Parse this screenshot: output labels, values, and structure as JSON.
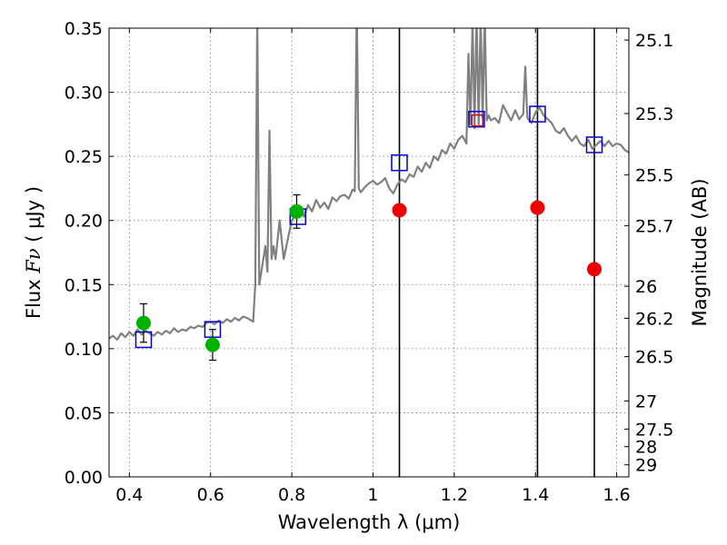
{
  "chart_data": {
    "type": "scatter",
    "xlabel": "Wavelength  λ (μm)",
    "ylabel_prefix": "Flux ",
    "ylabel_symbol": "Fν",
    "ylabel_unit": " ( μJy )",
    "ylabel_right": "Magnitude (AB)",
    "xlim": [
      0.35,
      1.63
    ],
    "ylim": [
      0.0,
      0.35
    ],
    "grid": true,
    "x_ticks": [
      0.4,
      0.6,
      0.8,
      1.0,
      1.2,
      1.4,
      1.6
    ],
    "x_tick_labels": [
      "0.4",
      "0.6",
      "0.8",
      "1",
      "1.2",
      "1.4",
      "1.6"
    ],
    "y_ticks": [
      0.0,
      0.05,
      0.1,
      0.15,
      0.2,
      0.25,
      0.3,
      0.35
    ],
    "y_tick_labels": [
      "0.00",
      "0.05",
      "0.10",
      "0.15",
      "0.20",
      "0.25",
      "0.30",
      "0.35"
    ],
    "mag_ticks": [
      {
        "label": "25.1",
        "flux": 0.3407
      },
      {
        "label": "25.3",
        "flux": 0.2834
      },
      {
        "label": "25.5",
        "flux": 0.2357
      },
      {
        "label": "25.7",
        "flux": 0.196
      },
      {
        "label": "26",
        "flux": 0.1487
      },
      {
        "label": "26.2",
        "flux": 0.1237
      },
      {
        "label": "26.5",
        "flux": 0.0938
      },
      {
        "label": "27",
        "flux": 0.0592
      },
      {
        "label": "27.5",
        "flux": 0.0373
      },
      {
        "label": "28",
        "flux": 0.0236
      },
      {
        "label": "29",
        "flux": 0.0094
      }
    ],
    "vertical_lines": [
      1.065,
      1.405,
      1.545
    ],
    "series": [
      {
        "kind": "spectrum",
        "color": "#808080",
        "x": [
          0.35,
          0.36,
          0.37,
          0.38,
          0.39,
          0.4,
          0.41,
          0.42,
          0.43,
          0.44,
          0.45,
          0.46,
          0.47,
          0.48,
          0.49,
          0.5,
          0.51,
          0.52,
          0.53,
          0.54,
          0.55,
          0.56,
          0.57,
          0.58,
          0.59,
          0.6,
          0.61,
          0.62,
          0.63,
          0.64,
          0.65,
          0.66,
          0.67,
          0.68,
          0.69,
          0.7,
          0.705,
          0.71,
          0.715,
          0.72,
          0.725,
          0.73,
          0.735,
          0.74,
          0.745,
          0.75,
          0.755,
          0.76,
          0.77,
          0.78,
          0.79,
          0.8,
          0.81,
          0.82,
          0.83,
          0.84,
          0.85,
          0.86,
          0.87,
          0.88,
          0.89,
          0.9,
          0.91,
          0.92,
          0.93,
          0.94,
          0.95,
          0.955,
          0.96,
          0.965,
          0.97,
          0.98,
          0.99,
          1.0,
          1.01,
          1.02,
          1.03,
          1.04,
          1.05,
          1.06,
          1.07,
          1.08,
          1.09,
          1.1,
          1.11,
          1.12,
          1.13,
          1.14,
          1.15,
          1.16,
          1.17,
          1.18,
          1.19,
          1.2,
          1.21,
          1.22,
          1.23,
          1.235,
          1.24,
          1.245,
          1.25,
          1.255,
          1.26,
          1.265,
          1.27,
          1.275,
          1.28,
          1.285,
          1.29,
          1.3,
          1.31,
          1.32,
          1.33,
          1.34,
          1.35,
          1.36,
          1.37,
          1.375,
          1.38,
          1.39,
          1.4,
          1.41,
          1.42,
          1.43,
          1.44,
          1.45,
          1.46,
          1.47,
          1.48,
          1.49,
          1.5,
          1.51,
          1.52,
          1.53,
          1.54,
          1.55,
          1.56,
          1.57,
          1.58,
          1.59,
          1.6,
          1.61,
          1.62,
          1.63
        ],
        "y": [
          0.108,
          0.11,
          0.107,
          0.112,
          0.109,
          0.113,
          0.11,
          0.115,
          0.111,
          0.114,
          0.112,
          0.11,
          0.113,
          0.111,
          0.114,
          0.112,
          0.116,
          0.113,
          0.115,
          0.114,
          0.117,
          0.116,
          0.118,
          0.117,
          0.12,
          0.121,
          0.119,
          0.122,
          0.12,
          0.123,
          0.121,
          0.124,
          0.122,
          0.125,
          0.124,
          0.122,
          0.121,
          0.15,
          0.36,
          0.15,
          0.16,
          0.17,
          0.18,
          0.16,
          0.27,
          0.17,
          0.18,
          0.17,
          0.2,
          0.17,
          0.185,
          0.2,
          0.205,
          0.21,
          0.203,
          0.212,
          0.207,
          0.216,
          0.21,
          0.214,
          0.209,
          0.218,
          0.215,
          0.219,
          0.22,
          0.217,
          0.224,
          0.223,
          0.37,
          0.225,
          0.222,
          0.226,
          0.229,
          0.231,
          0.228,
          0.23,
          0.233,
          0.225,
          0.221,
          0.228,
          0.232,
          0.23,
          0.236,
          0.234,
          0.242,
          0.238,
          0.245,
          0.241,
          0.25,
          0.247,
          0.255,
          0.252,
          0.26,
          0.256,
          0.263,
          0.266,
          0.26,
          0.33,
          0.275,
          0.355,
          0.272,
          0.36,
          0.275,
          0.36,
          0.28,
          0.36,
          0.278,
          0.282,
          0.278,
          0.28,
          0.276,
          0.29,
          0.284,
          0.278,
          0.286,
          0.279,
          0.283,
          0.32,
          0.28,
          0.276,
          0.284,
          0.288,
          0.282,
          0.279,
          0.276,
          0.27,
          0.268,
          0.272,
          0.266,
          0.262,
          0.266,
          0.26,
          0.258,
          0.263,
          0.256,
          0.259,
          0.262,
          0.258,
          0.262,
          0.258,
          0.26,
          0.259,
          0.255,
          0.253
        ]
      },
      {
        "kind": "model_squares",
        "color": "#0000cc",
        "x": [
          0.435,
          0.605,
          0.815,
          1.065,
          1.255,
          1.405,
          1.545
        ],
        "y": [
          0.107,
          0.115,
          0.203,
          0.245,
          0.279,
          0.283,
          0.259
        ]
      },
      {
        "kind": "red_square",
        "color": "#dd0000",
        "x": [
          1.257
        ],
        "y": [
          0.278
        ]
      },
      {
        "kind": "green_points",
        "color": "#00b200",
        "x": [
          0.435,
          0.605,
          0.812
        ],
        "y": [
          0.12,
          0.103,
          0.207
        ],
        "err": [
          0.015,
          0.012,
          0.013
        ]
      },
      {
        "kind": "red_points",
        "color": "#ee0000",
        "x": [
          1.065,
          1.405,
          1.545
        ],
        "y": [
          0.208,
          0.21,
          0.162
        ]
      }
    ]
  }
}
